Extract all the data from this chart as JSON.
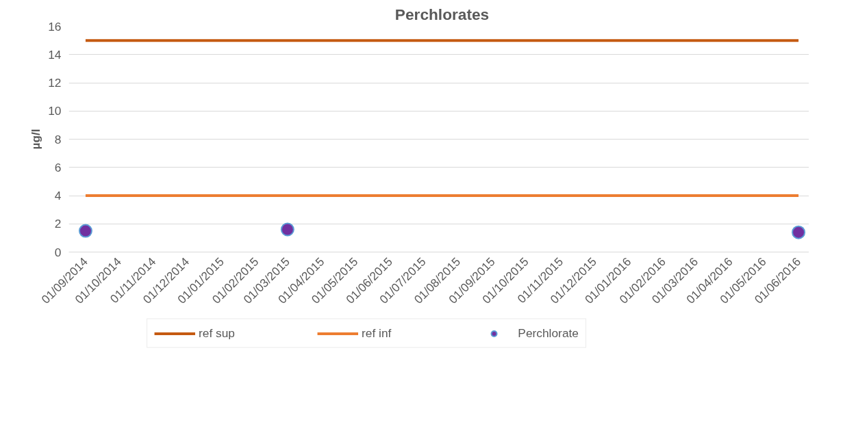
{
  "chart_data": {
    "type": "line",
    "title": "Perchlorates",
    "ylabel": "µg/l",
    "xlim": [
      "2014-08-17",
      "2016-06-16"
    ],
    "xticks": [
      {
        "value": "2014-09-01",
        "label": "01/09/2014"
      },
      {
        "value": "2014-10-01",
        "label": "01/10/2014"
      },
      {
        "value": "2014-11-01",
        "label": "01/11/2014"
      },
      {
        "value": "2014-12-01",
        "label": "01/12/2014"
      },
      {
        "value": "2015-01-01",
        "label": "01/01/2015"
      },
      {
        "value": "2015-02-01",
        "label": "01/02/2015"
      },
      {
        "value": "2015-03-01",
        "label": "01/03/2015"
      },
      {
        "value": "2015-04-01",
        "label": "01/04/2015"
      },
      {
        "value": "2015-05-01",
        "label": "01/05/2015"
      },
      {
        "value": "2015-06-01",
        "label": "01/06/2015"
      },
      {
        "value": "2015-07-01",
        "label": "01/07/2015"
      },
      {
        "value": "2015-08-01",
        "label": "01/08/2015"
      },
      {
        "value": "2015-09-01",
        "label": "01/09/2015"
      },
      {
        "value": "2015-10-01",
        "label": "01/10/2015"
      },
      {
        "value": "2015-11-01",
        "label": "01/11/2015"
      },
      {
        "value": "2015-12-01",
        "label": "01/12/2015"
      },
      {
        "value": "2016-01-01",
        "label": "01/01/2016"
      },
      {
        "value": "2016-02-01",
        "label": "01/02/2016"
      },
      {
        "value": "2016-03-01",
        "label": "01/03/2016"
      },
      {
        "value": "2016-04-01",
        "label": "01/04/2016"
      },
      {
        "value": "2016-05-01",
        "label": "01/05/2016"
      },
      {
        "value": "2016-06-01",
        "label": "01/06/2016"
      }
    ],
    "ylim": [
      0,
      16
    ],
    "yticks": [
      0,
      2,
      4,
      6,
      8,
      10,
      12,
      14,
      16
    ],
    "grid": "y",
    "legend": "bottom",
    "series": [
      {
        "name": "ref sup",
        "type": "line",
        "color": "#c55a11",
        "x": [
          "2014-09-01",
          "2016-06-01"
        ],
        "values": [
          15,
          15
        ]
      },
      {
        "name": "ref inf",
        "type": "line",
        "color": "#ed7d31",
        "x": [
          "2014-09-01",
          "2016-06-01"
        ],
        "values": [
          4,
          4
        ]
      },
      {
        "name": "Perchlorate",
        "type": "scatter",
        "marker": "circle",
        "color": "#7030a0",
        "x": [
          "2014-09-01",
          "2015-03-01",
          "2016-06-01"
        ],
        "values": [
          1.5,
          1.6,
          1.4
        ]
      }
    ]
  }
}
